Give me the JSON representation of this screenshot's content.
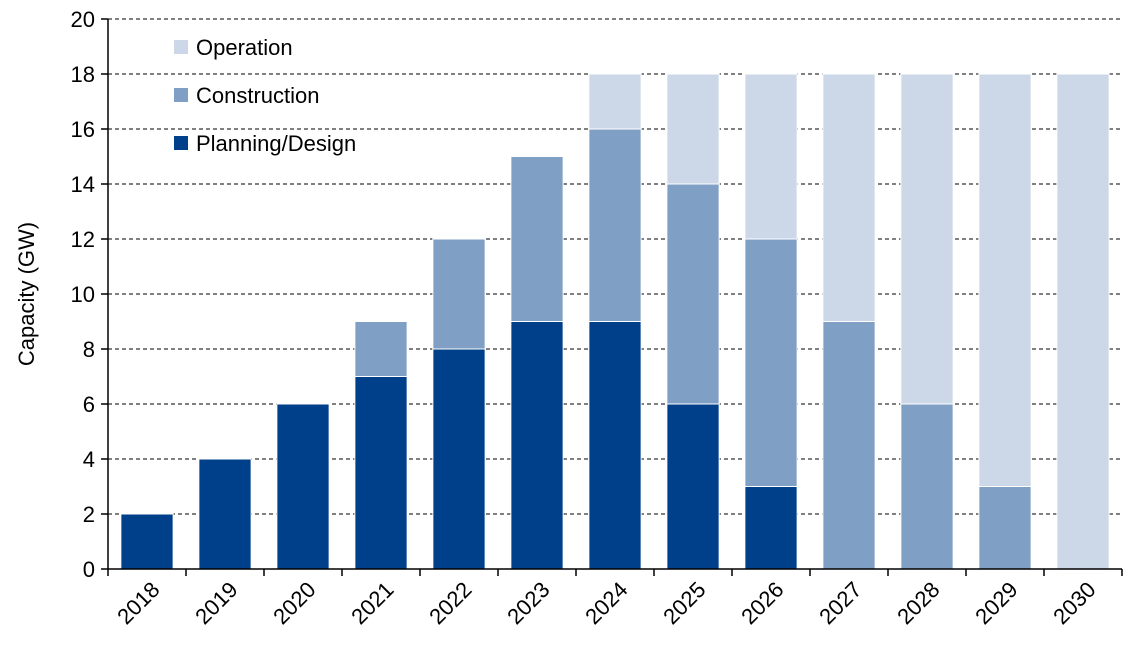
{
  "chart_data": {
    "type": "bar",
    "stacked": true,
    "categories": [
      "2018",
      "2019",
      "2020",
      "2021",
      "2022",
      "2023",
      "2024",
      "2025",
      "2026",
      "2027",
      "2028",
      "2029",
      "2030"
    ],
    "series": [
      {
        "name": "Planning/Design",
        "color": "#003F8A",
        "values": [
          2,
          4,
          6,
          7,
          8,
          9,
          9,
          6,
          3,
          0,
          0,
          0,
          0
        ]
      },
      {
        "name": "Construction",
        "color": "#809FC4",
        "values": [
          0,
          0,
          0,
          2,
          4,
          6,
          7,
          8,
          9,
          9,
          6,
          3,
          0
        ]
      },
      {
        "name": "Operation",
        "color": "#CCD8E8",
        "values": [
          0,
          0,
          0,
          0,
          0,
          0,
          2,
          4,
          6,
          9,
          12,
          15,
          18
        ]
      }
    ],
    "legend_order": [
      "Operation",
      "Construction",
      "Planning/Design"
    ],
    "legend_position": "top-left",
    "title": "",
    "xlabel": "",
    "ylabel": "Capacity (GW)",
    "ylim": [
      0,
      20
    ],
    "yticks": [
      0,
      2,
      4,
      6,
      8,
      10,
      12,
      14,
      16,
      18,
      20
    ],
    "grid": "horizontal-dashed"
  }
}
